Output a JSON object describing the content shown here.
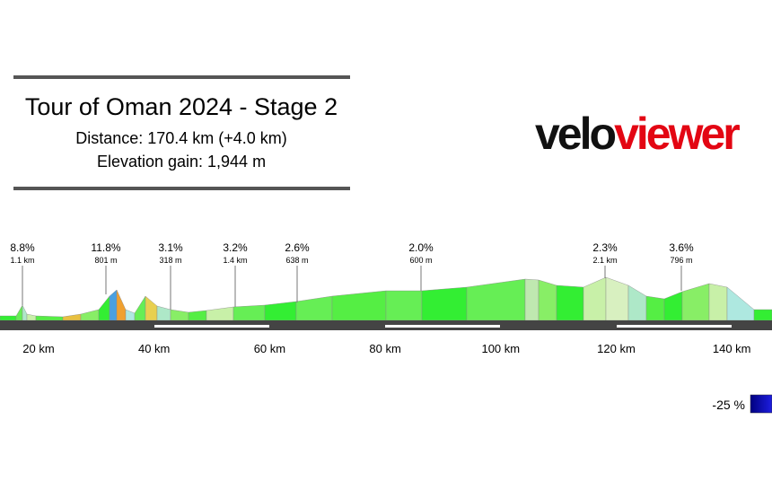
{
  "header": {
    "title": "Tour of Oman 2024 - Stage 2",
    "distance": "Distance: 170.4 km (+4.0 km)",
    "elevation": "Elevation gain: 1,944 m"
  },
  "logo": [
    "velo",
    "viewer"
  ],
  "climbs": [
    {
      "gradient": "8.8%",
      "length": "1.1 km"
    },
    {
      "gradient": "11.8%",
      "length": "801 m"
    },
    {
      "gradient": "3.1%",
      "length": "318 m"
    },
    {
      "gradient": "3.2%",
      "length": "1.4 km"
    },
    {
      "gradient": "2.6%",
      "length": "638 m"
    },
    {
      "gradient": "2.0%",
      "length": "600 m"
    },
    {
      "gradient": "2.3%",
      "length": "2.1 km"
    },
    {
      "gradient": "3.6%",
      "length": "796 m"
    }
  ],
  "axis": [
    "20 km",
    "40 km",
    "60 km",
    "80 km",
    "100 km",
    "120 km",
    "140 km"
  ],
  "legend": "-25 %"
}
